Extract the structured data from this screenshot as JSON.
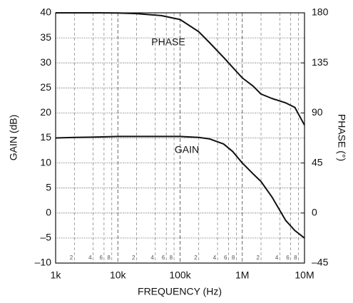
{
  "chart_data": {
    "type": "line",
    "xlabel": "FREQUENCY (Hz)",
    "ylabel": "GAIN (dB)",
    "y2label": "PHASE (°)",
    "annotations": [
      "PHASE",
      "GAIN"
    ],
    "xscale": "log",
    "grid": true,
    "xlim": [
      1000,
      10000000
    ],
    "xticks": [
      {
        "value": 1000,
        "label": "1k"
      },
      {
        "value": 10000,
        "label": "10k"
      },
      {
        "value": 100000,
        "label": "100k"
      },
      {
        "value": 1000000,
        "label": "1M"
      },
      {
        "value": 10000000,
        "label": "10M"
      }
    ],
    "xminorticks": [
      {
        "value": 2000,
        "label": "2"
      },
      {
        "value": 4000,
        "label": "4"
      },
      {
        "value": 6000,
        "label": "6"
      },
      {
        "value": 8000,
        "label": "8"
      },
      {
        "value": 20000,
        "label": "2"
      },
      {
        "value": 40000,
        "label": "4"
      },
      {
        "value": 60000,
        "label": "6"
      },
      {
        "value": 80000,
        "label": "8"
      },
      {
        "value": 200000,
        "label": "2"
      },
      {
        "value": 400000,
        "label": "4"
      },
      {
        "value": 600000,
        "label": "6"
      },
      {
        "value": 800000,
        "label": "8"
      },
      {
        "value": 2000000,
        "label": "2"
      },
      {
        "value": 4000000,
        "label": "4"
      },
      {
        "value": 6000000,
        "label": "6"
      },
      {
        "value": 8000000,
        "label": "8"
      }
    ],
    "ylim": [
      -10,
      40
    ],
    "yticks": [
      {
        "value": -10,
        "label": "–10"
      },
      {
        "value": -5,
        "label": "–5"
      },
      0,
      5,
      10,
      15,
      20,
      25,
      30,
      35,
      40
    ],
    "y2lim": [
      -45,
      180
    ],
    "y2ticks": [
      {
        "value": -45,
        "label": "–45"
      },
      0,
      45,
      90,
      135,
      180
    ],
    "x": [
      1000,
      2000,
      5000,
      10000,
      20000,
      50000,
      100000,
      200000,
      300000,
      500000,
      700000,
      1000000,
      1500000,
      2000000,
      3000000,
      5000000,
      7000000,
      10000000
    ],
    "series": [
      {
        "name": "GAIN",
        "color": "#111111",
        "values": [
          15,
          15.1,
          15.2,
          15.3,
          15.3,
          15.3,
          15.3,
          15.1,
          14.8,
          13.8,
          12.3,
          10,
          7.8,
          6.3,
          3.2,
          -1.5,
          -3.5,
          -5
        ]
      },
      {
        "name": "PHASE",
        "color": "#111111",
        "axis": "y2",
        "values": [
          180,
          180,
          180,
          179.8,
          179.3,
          177.5,
          174,
          163,
          153,
          140,
          131,
          121.5,
          114,
          107,
          103,
          99,
          95,
          79
        ]
      }
    ]
  }
}
